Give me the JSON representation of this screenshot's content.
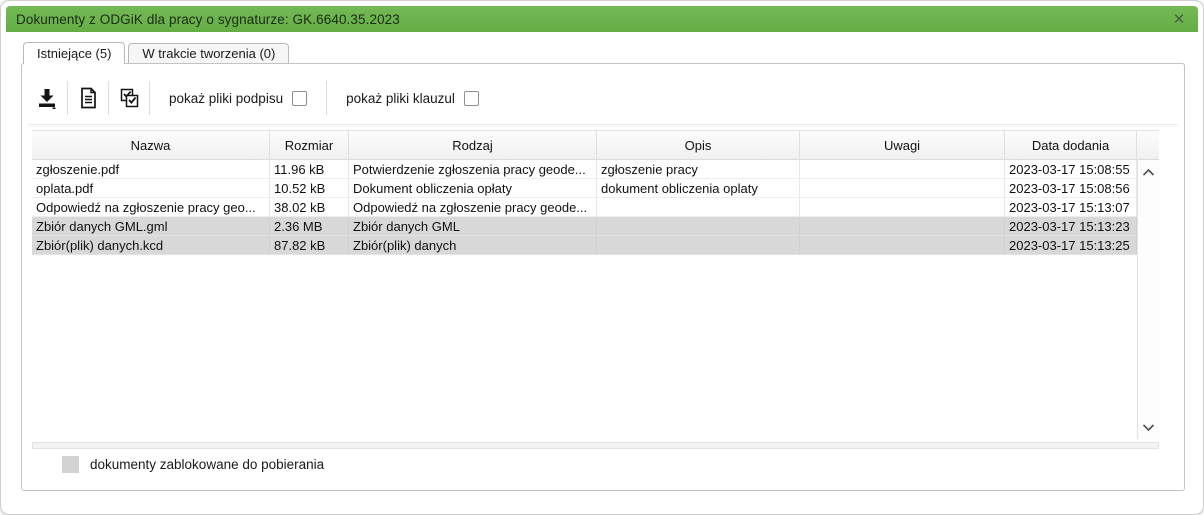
{
  "window": {
    "title": "Dokumenty z ODGiK dla pracy o sygnaturze: GK.6640.35.2023",
    "close_glyph": "✕",
    "accent_color": "#69b14b"
  },
  "tabs": [
    {
      "label": "Istniejące (5)",
      "active": true
    },
    {
      "label": "W trakcie tworzenia (0)",
      "active": false
    }
  ],
  "toolbar": {
    "icons": [
      "download-icon",
      "document-icon",
      "verify-checkboxes-icon"
    ],
    "checkboxes": [
      {
        "label": "pokaż pliki podpisu",
        "checked": false
      },
      {
        "label": "pokaż pliki klauzul",
        "checked": false
      }
    ]
  },
  "table": {
    "columns": [
      "Nazwa",
      "Rozmiar",
      "Rodzaj",
      "Opis",
      "Uwagi",
      "Data dodania"
    ],
    "rows": [
      {
        "nazwa": "zgłoszenie.pdf",
        "rozmiar": "11.96 kB",
        "rodzaj": "Potwierdzenie zgłoszenia pracy geode...",
        "opis": "zgłoszenie pracy",
        "uwagi": "",
        "data": "2023-03-17 15:08:55",
        "blocked": false
      },
      {
        "nazwa": "oplata.pdf",
        "rozmiar": "10.52 kB",
        "rodzaj": "Dokument obliczenia opłaty",
        "opis": "dokument obliczenia oplaty",
        "uwagi": "",
        "data": "2023-03-17 15:08:56",
        "blocked": false
      },
      {
        "nazwa": "Odpowiedź na zgłoszenie pracy geo...",
        "rozmiar": "38.02 kB",
        "rodzaj": "Odpowiedź na zgłoszenie pracy geode...",
        "opis": "",
        "uwagi": "",
        "data": "2023-03-17 15:13:07",
        "blocked": false
      },
      {
        "nazwa": "Zbiór danych GML.gml",
        "rozmiar": "2.36 MB",
        "rodzaj": "Zbiór danych GML",
        "opis": "",
        "uwagi": "",
        "data": "2023-03-17 15:13:23",
        "blocked": true
      },
      {
        "nazwa": "Zbiór(plik) danych.kcd",
        "rozmiar": "87.82 kB",
        "rodzaj": "Zbiór(plik) danych",
        "opis": "",
        "uwagi": "",
        "data": "2023-03-17 15:13:25",
        "blocked": true
      }
    ]
  },
  "legend": {
    "label": "dokumenty zablokowane do pobierania",
    "blocked_row_color": "#d8d8d8"
  }
}
